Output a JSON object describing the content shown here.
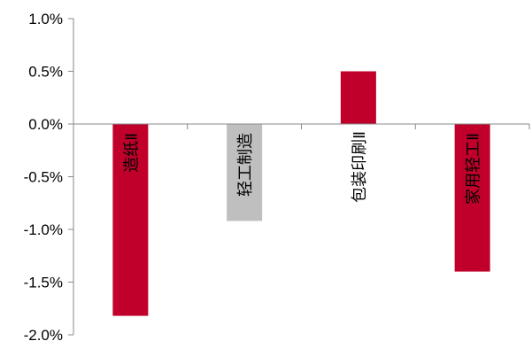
{
  "chart_data": {
    "type": "bar",
    "title": "",
    "xlabel": "",
    "ylabel": "",
    "categories": [
      "造纸Ⅱ",
      "轻工制造",
      "包装印刷Ⅱ",
      "家用轻工Ⅱ"
    ],
    "values": [
      -1.82,
      -0.92,
      0.5,
      -1.4
    ],
    "bar_colors": [
      "#C0002B",
      "#BFBFBF",
      "#C0002B",
      "#C0002B"
    ],
    "ylim": [
      -2.0,
      1.0
    ],
    "yticks": [
      1.0,
      0.5,
      0.0,
      -0.5,
      -1.0,
      -1.5,
      -2.0
    ],
    "ytick_labels": [
      "1.0%",
      "0.5%",
      "0.0%",
      "-0.5%",
      "-1.0%",
      "-1.5%",
      "-2.0%"
    ],
    "grid": false,
    "legend": "none"
  }
}
